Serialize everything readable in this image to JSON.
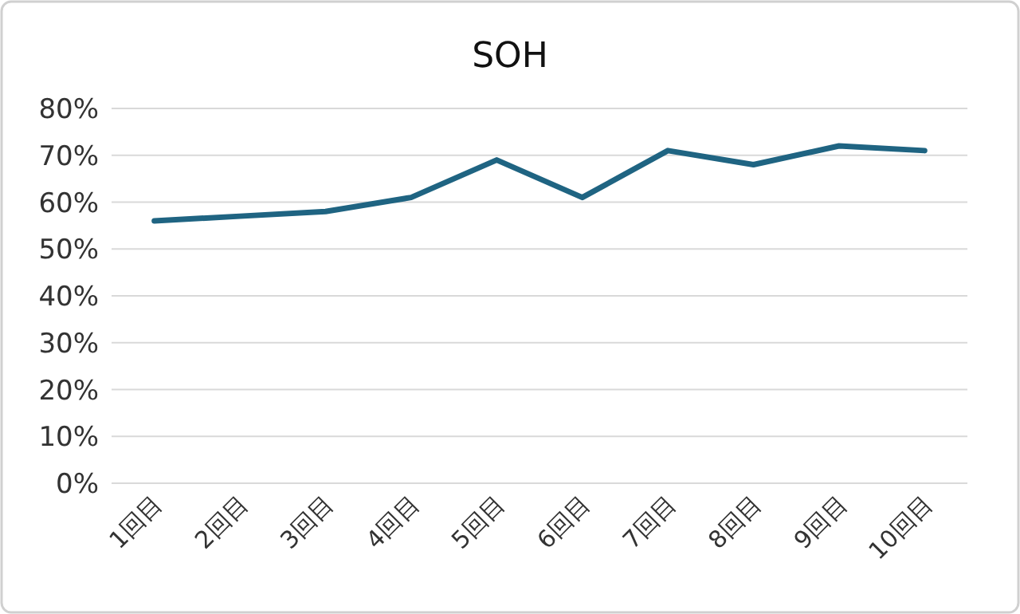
{
  "chart_data": {
    "type": "line",
    "title": "SOH",
    "categories": [
      "1回目",
      "2回目",
      "3回目",
      "4回目",
      "5回目",
      "6回目",
      "7回目",
      "8回目",
      "9回目",
      "10回目"
    ],
    "series": [
      {
        "color": "#1f6482",
        "values": [
          56,
          57,
          58,
          61,
          69,
          61,
          71,
          68,
          72,
          71
        ]
      }
    ],
    "ylim": [
      0,
      80
    ],
    "yticks": [
      {
        "value": 0,
        "label": "0%"
      },
      {
        "value": 10,
        "label": "10%"
      },
      {
        "value": 20,
        "label": "20%"
      },
      {
        "value": 30,
        "label": "30%"
      },
      {
        "value": 40,
        "label": "40%"
      },
      {
        "value": 50,
        "label": "50%"
      },
      {
        "value": 60,
        "label": "60%"
      },
      {
        "value": 70,
        "label": "70%"
      },
      {
        "value": 80,
        "label": "80%"
      }
    ],
    "grid": "y",
    "marker": "none",
    "line_style": "solid"
  }
}
